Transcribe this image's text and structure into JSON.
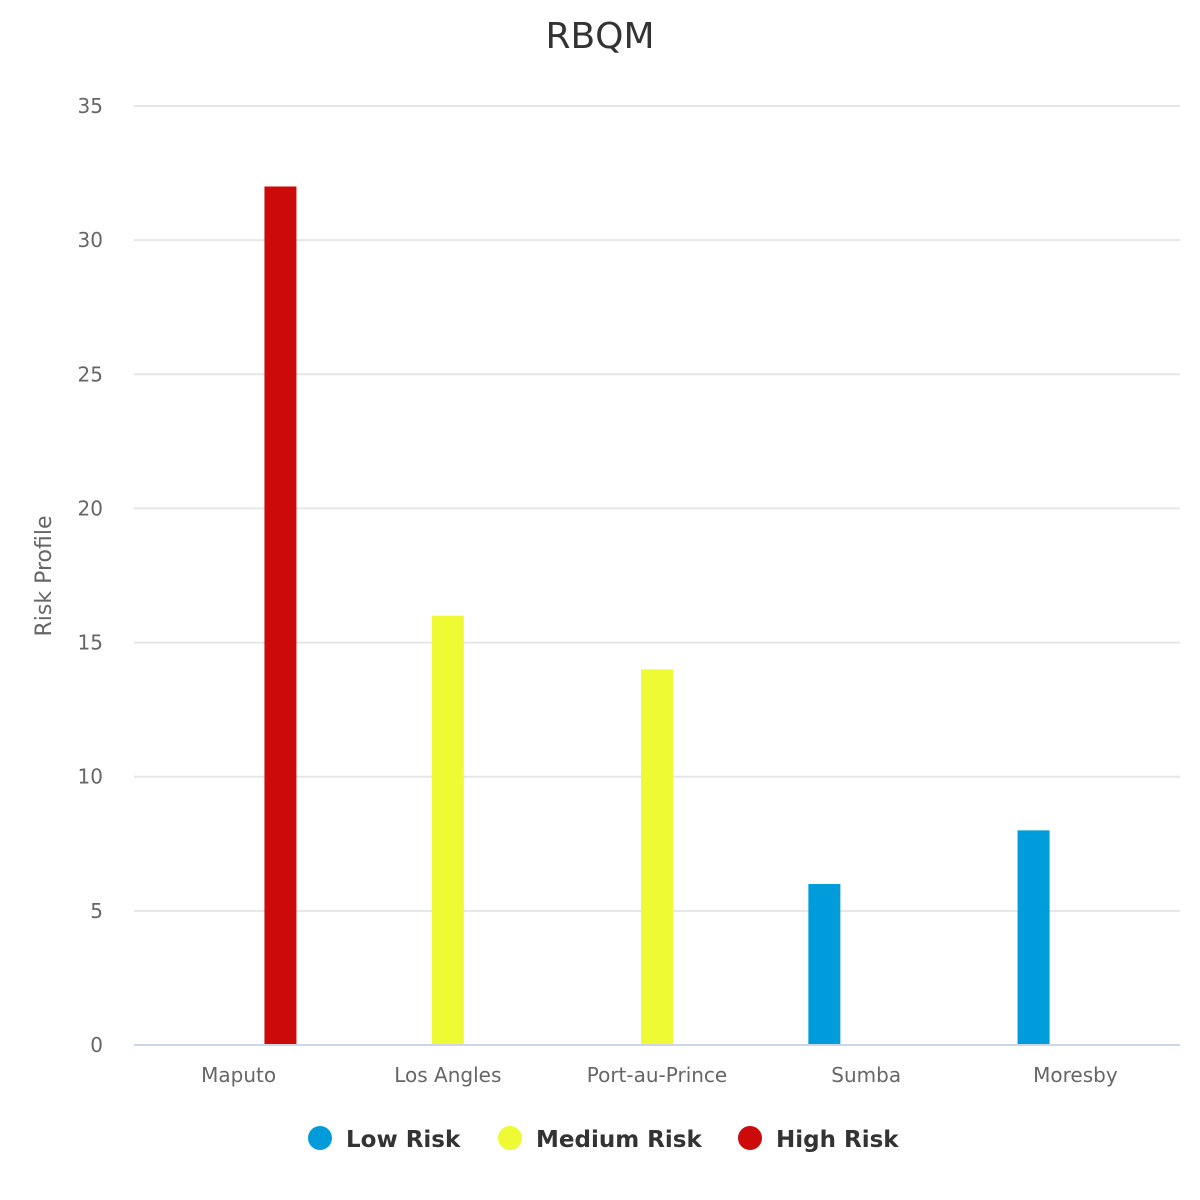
{
  "chart_data": {
    "type": "bar",
    "title": "RBQM",
    "ylabel": "Risk Profile",
    "xlabel": "",
    "ylim": [
      0,
      35
    ],
    "yticks": [
      0,
      5,
      10,
      15,
      20,
      25,
      30,
      35
    ],
    "grid": true,
    "legend_position": "bottom",
    "categories": [
      "Maputo",
      "Los Angles",
      "Port-au-Prince",
      "Sumba",
      "Moresby"
    ],
    "series": [
      {
        "name": "Low Risk",
        "color": "#009bdb",
        "values": [
          null,
          null,
          null,
          6,
          8
        ]
      },
      {
        "name": "Medium Risk",
        "color": "#eefa34",
        "values": [
          null,
          16,
          14,
          null,
          null
        ]
      },
      {
        "name": "High Risk",
        "color": "#cc0a0a",
        "values": [
          32,
          null,
          null,
          null,
          null
        ]
      }
    ]
  }
}
